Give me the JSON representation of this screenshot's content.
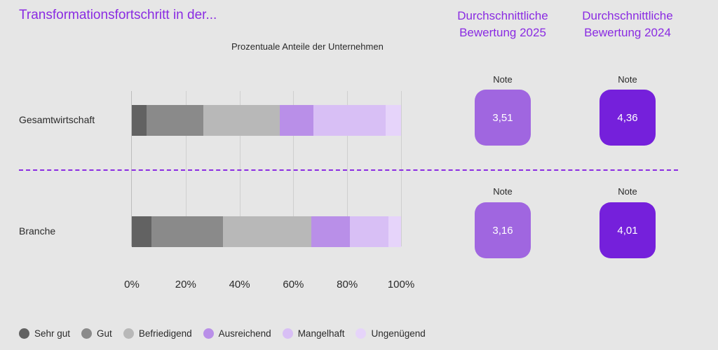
{
  "header": {
    "title": "Transformationsfortschritt in der...",
    "subtitle": "Prozentuale Anteile der Unternehmen",
    "col_2025": "Durchschnittliche Bewertung 2025",
    "col_2024": "Durchschnittliche Bewertung 2024"
  },
  "colors": {
    "accent": "#8a2be2",
    "box_2025": "#a066e0",
    "box_2024": "#7520db"
  },
  "notes": {
    "label": "Note",
    "gesamtwirtschaft": {
      "y2025": "3,51",
      "y2024": "4,36"
    },
    "branche": {
      "y2025": "3,16",
      "y2024": "4,01"
    }
  },
  "chart_data": {
    "type": "bar",
    "orientation": "horizontal",
    "stacked": true,
    "title": "Prozentuale Anteile der Unternehmen",
    "categories": [
      "Gesamtwirtschaft",
      "Branche"
    ],
    "xlim": [
      0,
      100
    ],
    "x_ticks": [
      "0%",
      "20%",
      "40%",
      "60%",
      "80%",
      "100%"
    ],
    "grid": true,
    "legend_position": "bottom-left",
    "series": [
      {
        "name": "Sehr gut",
        "color": "#626262",
        "values": [
          5.5,
          7.3
        ]
      },
      {
        "name": "Gut",
        "color": "#8a8a8a",
        "values": [
          21.1,
          26.6
        ]
      },
      {
        "name": "Befriedigend",
        "color": "#b8b8b8",
        "values": [
          28.4,
          32.8
        ]
      },
      {
        "name": "Ausreichend",
        "color": "#b98fe8",
        "values": [
          12.5,
          14.3
        ]
      },
      {
        "name": "Mangelhaft",
        "color": "#d8bff5",
        "values": [
          26.8,
          14.3
        ]
      },
      {
        "name": "Ungenügend",
        "color": "#e6d4fa",
        "values": [
          5.7,
          4.7
        ]
      }
    ]
  }
}
